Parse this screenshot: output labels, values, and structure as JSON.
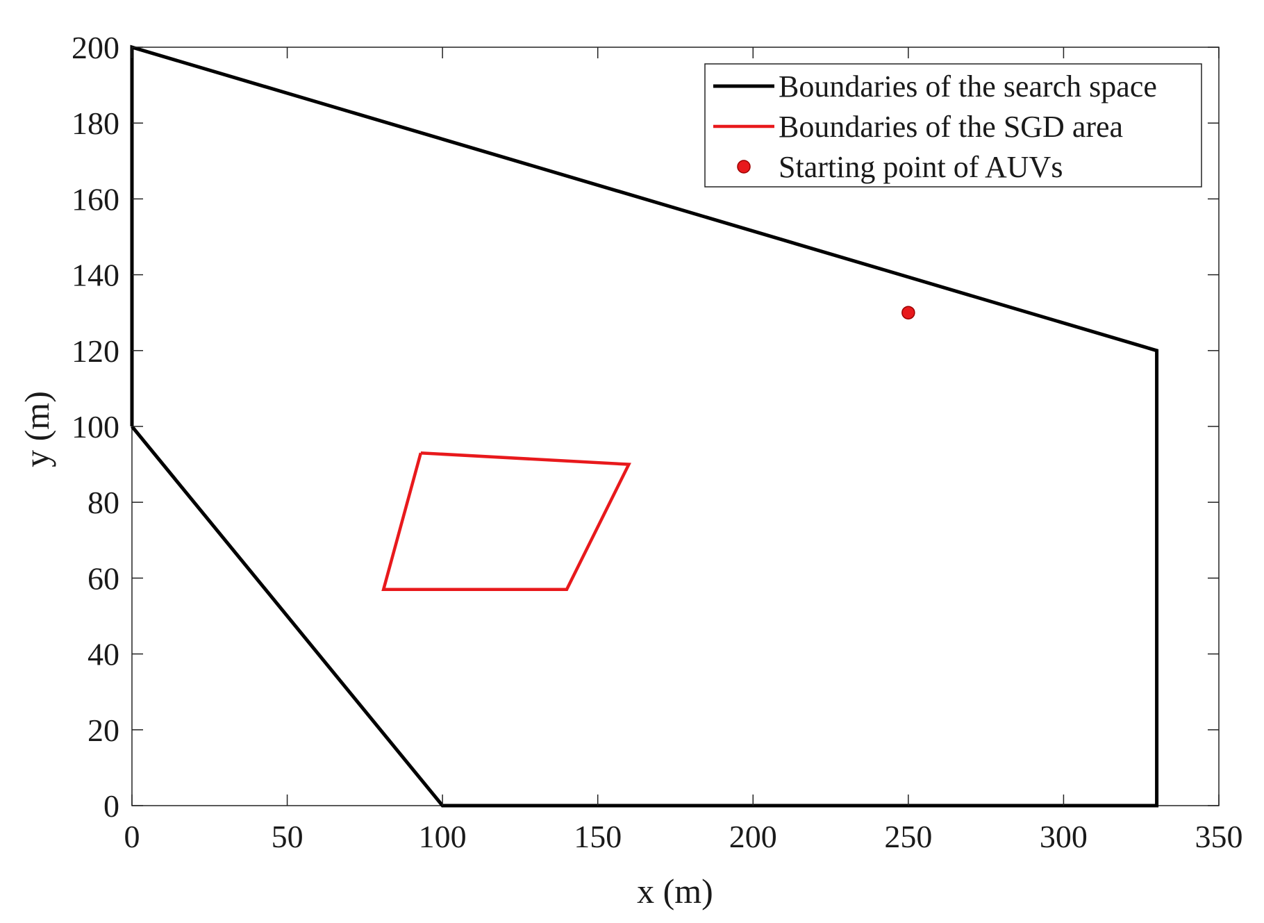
{
  "chart_data": {
    "type": "line",
    "xlabel": "x (m)",
    "ylabel": "y (m)",
    "xlim": [
      0,
      350
    ],
    "ylim": [
      0,
      200
    ],
    "xticks": [
      0,
      50,
      100,
      150,
      200,
      250,
      300,
      350
    ],
    "yticks": [
      0,
      20,
      40,
      60,
      80,
      100,
      120,
      140,
      160,
      180,
      200
    ],
    "grid": false,
    "legend_position": "top-right",
    "series": [
      {
        "name": "Boundaries of the search space",
        "kind": "line",
        "color": "#000000",
        "x": [
          0,
          0,
          330,
          330,
          100,
          0
        ],
        "y": [
          100,
          200,
          120,
          0,
          0,
          100
        ]
      },
      {
        "name": "Boundaries of the SGD area",
        "kind": "line",
        "color": "#e8191c",
        "x": [
          93,
          160,
          140,
          81,
          93
        ],
        "y": [
          93,
          90,
          57,
          57,
          93
        ]
      },
      {
        "name": "Starting point of AUVs",
        "kind": "marker",
        "color": "#e8191c",
        "x": [
          250
        ],
        "y": [
          130
        ]
      }
    ]
  }
}
